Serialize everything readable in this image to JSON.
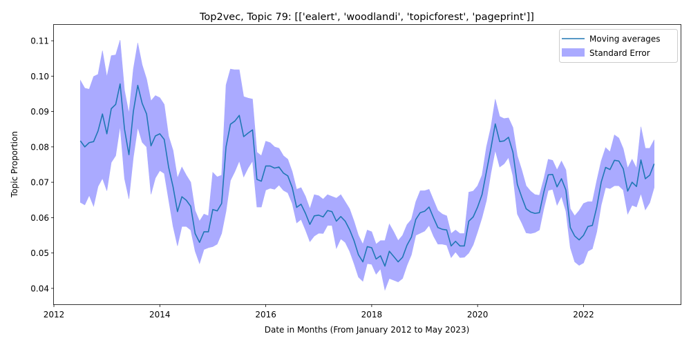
{
  "chart_data": {
    "type": "line",
    "title": "Top2vec, Topic 79: [['ealert', 'woodlandi', 'topicforest', 'pageprint']]",
    "xlabel": "Date in Months (From January 2012 to May 2023)",
    "ylabel": "Topic Proportion",
    "xlim": [
      "2012-01-01",
      "2023-11-01"
    ],
    "ylim": [
      0.0355,
      0.1145
    ],
    "x_ticks": [
      {
        "label": "2012",
        "date": "2012-01-01"
      },
      {
        "label": "2014",
        "date": "2014-01-01"
      },
      {
        "label": "2016",
        "date": "2016-01-01"
      },
      {
        "label": "2018",
        "date": "2018-01-01"
      },
      {
        "label": "2020",
        "date": "2020-01-01"
      },
      {
        "label": "2022",
        "date": "2022-01-01"
      }
    ],
    "y_ticks": [
      "0.04",
      "0.05",
      "0.06",
      "0.07",
      "0.08",
      "0.09",
      "0.10",
      "0.11"
    ],
    "grid": false,
    "legend_position": "top-right",
    "legend": [
      {
        "label": "Moving averages",
        "type": "line",
        "color": "#1f77b4"
      },
      {
        "label": "Standard Error",
        "type": "band",
        "color": "#aaaaff"
      }
    ],
    "x": [
      "2012-07",
      "2012-08",
      "2012-09",
      "2012-10",
      "2012-11",
      "2012-12",
      "2013-01",
      "2013-02",
      "2013-03",
      "2013-04",
      "2013-05",
      "2013-06",
      "2013-07",
      "2013-08",
      "2013-09",
      "2013-10",
      "2013-11",
      "2013-12",
      "2014-01",
      "2014-02",
      "2014-03",
      "2014-04",
      "2014-05",
      "2014-06",
      "2014-07",
      "2014-08",
      "2014-09",
      "2014-10",
      "2014-11",
      "2014-12",
      "2015-01",
      "2015-02",
      "2015-03",
      "2015-04",
      "2015-05",
      "2015-06",
      "2015-07",
      "2015-08",
      "2015-09",
      "2015-10",
      "2015-11",
      "2015-12",
      "2016-01",
      "2016-02",
      "2016-03",
      "2016-04",
      "2016-05",
      "2016-06",
      "2016-07",
      "2016-08",
      "2016-09",
      "2016-10",
      "2016-11",
      "2016-12",
      "2017-01",
      "2017-02",
      "2017-03",
      "2017-04",
      "2017-05",
      "2017-06",
      "2017-07",
      "2017-08",
      "2017-09",
      "2017-10",
      "2017-11",
      "2017-12",
      "2018-01",
      "2018-02",
      "2018-03",
      "2018-04",
      "2018-05",
      "2018-06",
      "2018-07",
      "2018-08",
      "2018-09",
      "2018-10",
      "2018-11",
      "2018-12",
      "2019-01",
      "2019-02",
      "2019-03",
      "2019-04",
      "2019-05",
      "2019-06",
      "2019-07",
      "2019-08",
      "2019-09",
      "2019-10",
      "2019-11",
      "2019-12",
      "2020-01",
      "2020-02",
      "2020-03",
      "2020-04",
      "2020-05",
      "2020-06",
      "2020-07",
      "2020-08",
      "2020-09",
      "2020-10",
      "2020-11",
      "2020-12",
      "2021-01",
      "2021-02",
      "2021-03",
      "2021-04",
      "2021-05",
      "2021-06",
      "2021-07",
      "2021-08",
      "2021-09",
      "2021-10",
      "2021-11",
      "2021-12",
      "2022-01",
      "2022-02",
      "2022-03",
      "2022-04",
      "2022-05",
      "2022-06",
      "2022-07",
      "2022-08",
      "2022-09",
      "2022-10",
      "2022-11",
      "2022-12",
      "2023-01",
      "2023-02",
      "2023-03",
      "2023-04",
      "2023-05"
    ],
    "series": [
      {
        "name": "Moving averages",
        "color": "#1f77b4",
        "values": [
          0.0817,
          0.08,
          0.0812,
          0.0815,
          0.0845,
          0.0893,
          0.0837,
          0.0908,
          0.092,
          0.0978,
          0.085,
          0.0778,
          0.09,
          0.0974,
          0.0923,
          0.0893,
          0.0803,
          0.0831,
          0.0837,
          0.0821,
          0.0742,
          0.0687,
          0.0617,
          0.0659,
          0.0649,
          0.0632,
          0.0555,
          0.053,
          0.056,
          0.056,
          0.0623,
          0.0619,
          0.064,
          0.08,
          0.0864,
          0.0873,
          0.0889,
          0.0829,
          0.0839,
          0.0848,
          0.0708,
          0.0703,
          0.0746,
          0.0746,
          0.074,
          0.0743,
          0.0726,
          0.0718,
          0.0685,
          0.0629,
          0.0638,
          0.0612,
          0.0581,
          0.0605,
          0.0607,
          0.0602,
          0.062,
          0.0617,
          0.059,
          0.0603,
          0.059,
          0.0566,
          0.0535,
          0.0495,
          0.0475,
          0.0518,
          0.0515,
          0.0483,
          0.0492,
          0.0463,
          0.0505,
          0.049,
          0.0475,
          0.0488,
          0.0522,
          0.0545,
          0.0595,
          0.0614,
          0.0618,
          0.063,
          0.06,
          0.0572,
          0.0567,
          0.0565,
          0.052,
          0.0533,
          0.052,
          0.052,
          0.059,
          0.0602,
          0.063,
          0.0665,
          0.073,
          0.0795,
          0.0865,
          0.0815,
          0.0817,
          0.0827,
          0.0785,
          0.0694,
          0.0658,
          0.0625,
          0.0616,
          0.0612,
          0.0614,
          0.0672,
          0.0721,
          0.0722,
          0.0687,
          0.071,
          0.0678,
          0.0572,
          0.0548,
          0.0537,
          0.055,
          0.0575,
          0.0578,
          0.063,
          0.07,
          0.0742,
          0.0736,
          0.0762,
          0.076,
          0.0738,
          0.0675,
          0.07,
          0.0688,
          0.0763,
          0.071,
          0.072,
          0.0752
        ]
      }
    ],
    "band": {
      "name": "Standard Error",
      "color": "#aaaaff",
      "upper": [
        0.0988,
        0.0966,
        0.0963,
        0.0999,
        0.1005,
        0.1072,
        0.0998,
        0.1058,
        0.106,
        0.1102,
        0.096,
        0.0895,
        0.102,
        0.1094,
        0.1032,
        0.0992,
        0.093,
        0.0945,
        0.0939,
        0.092,
        0.083,
        0.079,
        0.0712,
        0.0743,
        0.072,
        0.07,
        0.062,
        0.059,
        0.061,
        0.0605,
        0.0728,
        0.0715,
        0.072,
        0.0975,
        0.102,
        0.1018,
        0.1018,
        0.0942,
        0.0938,
        0.0935,
        0.0785,
        0.0775,
        0.0816,
        0.0812,
        0.08,
        0.0796,
        0.0775,
        0.0765,
        0.073,
        0.068,
        0.0685,
        0.066,
        0.0625,
        0.0665,
        0.0662,
        0.0652,
        0.0665,
        0.066,
        0.0655,
        0.0665,
        0.0645,
        0.0625,
        0.059,
        0.055,
        0.0525,
        0.0565,
        0.056,
        0.0525,
        0.0535,
        0.0535,
        0.0582,
        0.056,
        0.0535,
        0.055,
        0.058,
        0.0595,
        0.0645,
        0.0676,
        0.0676,
        0.068,
        0.065,
        0.062,
        0.061,
        0.0605,
        0.0555,
        0.0565,
        0.0555,
        0.0555,
        0.0672,
        0.0675,
        0.069,
        0.072,
        0.08,
        0.0855,
        0.0935,
        0.0886,
        0.088,
        0.0882,
        0.0855,
        0.0775,
        0.0735,
        0.069,
        0.0675,
        0.0665,
        0.0663,
        0.071,
        0.0765,
        0.0762,
        0.0735,
        0.076,
        0.0735,
        0.0625,
        0.0605,
        0.062,
        0.064,
        0.0645,
        0.0645,
        0.0705,
        0.076,
        0.0798,
        0.0786,
        0.0834,
        0.0825,
        0.0795,
        0.074,
        0.0765,
        0.074,
        0.0857,
        0.0796,
        0.0796,
        0.082
      ],
      "lower": [
        0.0643,
        0.0636,
        0.0663,
        0.0632,
        0.0688,
        0.0711,
        0.0676,
        0.0756,
        0.0775,
        0.0858,
        0.071,
        0.0653,
        0.077,
        0.0855,
        0.0813,
        0.08,
        0.0666,
        0.0712,
        0.0733,
        0.0725,
        0.065,
        0.0575,
        0.052,
        0.0575,
        0.0575,
        0.0565,
        0.0505,
        0.047,
        0.051,
        0.0515,
        0.0518,
        0.0525,
        0.0555,
        0.0618,
        0.0705,
        0.073,
        0.076,
        0.0715,
        0.074,
        0.076,
        0.063,
        0.063,
        0.0678,
        0.0683,
        0.068,
        0.0692,
        0.0677,
        0.067,
        0.064,
        0.0585,
        0.0595,
        0.0565,
        0.0532,
        0.0548,
        0.0556,
        0.0555,
        0.0578,
        0.0578,
        0.0513,
        0.054,
        0.053,
        0.0505,
        0.047,
        0.0432,
        0.042,
        0.047,
        0.0468,
        0.044,
        0.0455,
        0.0395,
        0.0428,
        0.0423,
        0.0418,
        0.0428,
        0.0465,
        0.0495,
        0.055,
        0.0556,
        0.0562,
        0.0578,
        0.0548,
        0.0525,
        0.0525,
        0.0522,
        0.0487,
        0.0503,
        0.0487,
        0.0488,
        0.05,
        0.0523,
        0.056,
        0.06,
        0.0648,
        0.0725,
        0.079,
        0.0743,
        0.0752,
        0.077,
        0.0718,
        0.061,
        0.0585,
        0.0557,
        0.0555,
        0.0558,
        0.0565,
        0.0625,
        0.0677,
        0.068,
        0.0635,
        0.066,
        0.0618,
        0.0515,
        0.0475,
        0.0465,
        0.0472,
        0.0505,
        0.0512,
        0.056,
        0.0635,
        0.0685,
        0.0682,
        0.069,
        0.069,
        0.0678,
        0.061,
        0.0635,
        0.063,
        0.0668,
        0.0622,
        0.0642,
        0.0685
      ]
    }
  }
}
